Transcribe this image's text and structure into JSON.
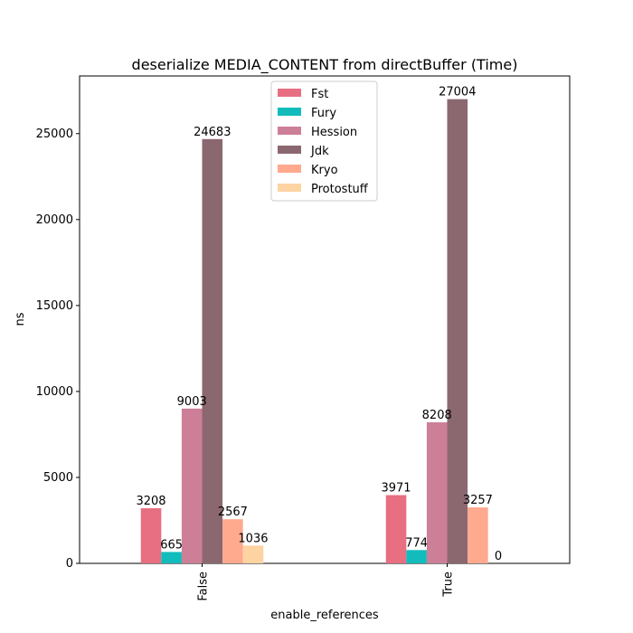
{
  "chart_data": {
    "type": "bar",
    "title": "deserialize MEDIA_CONTENT from directBuffer (Time)",
    "xlabel": "enable_references",
    "ylabel": "ns",
    "categories": [
      "False",
      "True"
    ],
    "ylim": [
      0,
      28354
    ],
    "yticks": [
      0,
      5000,
      10000,
      15000,
      20000,
      25000
    ],
    "grid": false,
    "legend_position": "top-center",
    "series": [
      {
        "name": "Fst",
        "color": "#e76f81",
        "values": [
          3208,
          3971
        ]
      },
      {
        "name": "Fury",
        "color": "#13bcbc",
        "values": [
          665,
          774
        ]
      },
      {
        "name": "Hession",
        "color": "#cd7f98",
        "values": [
          9003,
          8208
        ]
      },
      {
        "name": "Jdk",
        "color": "#8b6870",
        "values": [
          24683,
          27004
        ]
      },
      {
        "name": "Kryo",
        "color": "#ffa98e",
        "values": [
          2567,
          3257
        ]
      },
      {
        "name": "Protostuff",
        "color": "#fed3a2",
        "values": [
          1036,
          0
        ]
      }
    ]
  }
}
